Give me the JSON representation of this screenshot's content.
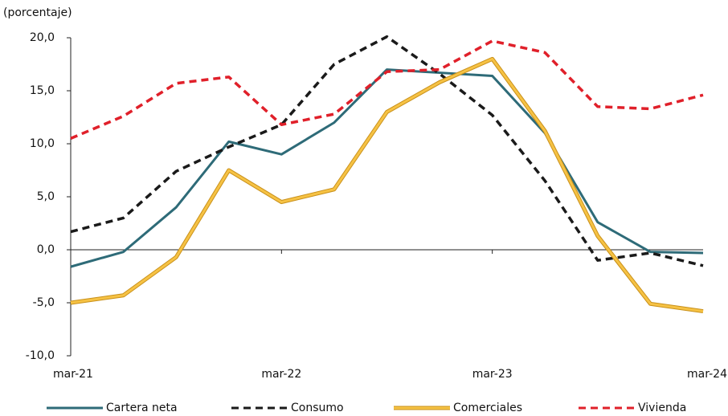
{
  "chart_data": {
    "type": "line",
    "y_label": "(porcentaje)",
    "categories": [
      "mar-21",
      null,
      null,
      null,
      "mar-22",
      null,
      null,
      null,
      "mar-23",
      null,
      null,
      null,
      "mar-24"
    ],
    "ylim": [
      -10,
      20
    ],
    "yticks": [
      {
        "value": -10,
        "label": "-10,0"
      },
      {
        "value": -5,
        "label": "-5,0"
      },
      {
        "value": 0,
        "label": "0,0"
      },
      {
        "value": 5,
        "label": "5,0"
      },
      {
        "value": 10,
        "label": "10,0"
      },
      {
        "value": 15,
        "label": "15,0"
      },
      {
        "value": 20,
        "label": "20,0"
      }
    ],
    "legend": "bottom",
    "series": [
      {
        "name": "Cartera neta",
        "color": "#2e6b78",
        "dashed": false,
        "values": [
          -1.6,
          -0.2,
          4.0,
          10.2,
          9.0,
          12.0,
          17.0,
          16.7,
          16.4,
          11.0,
          2.6,
          -0.2,
          -0.3
        ]
      },
      {
        "name": "Consumo",
        "color": "#1a1a1a",
        "dashed": true,
        "values": [
          1.7,
          3.0,
          7.4,
          9.7,
          11.8,
          17.5,
          20.1,
          16.6,
          12.7,
          6.5,
          -1.0,
          -0.3,
          -1.5
        ]
      },
      {
        "name": "Comerciales",
        "color": "#f6c244",
        "dashed": false,
        "values": [
          -5.0,
          -4.3,
          -0.7,
          7.5,
          4.5,
          5.7,
          13.0,
          15.8,
          18.0,
          11.2,
          1.3,
          -5.1,
          -5.8
        ]
      },
      {
        "name": "Vivienda",
        "color": "#e0202a",
        "dashed": true,
        "values": [
          10.5,
          12.6,
          15.7,
          16.3,
          11.8,
          12.8,
          16.8,
          17.0,
          19.7,
          18.6,
          13.5,
          13.3,
          14.6
        ]
      }
    ]
  }
}
